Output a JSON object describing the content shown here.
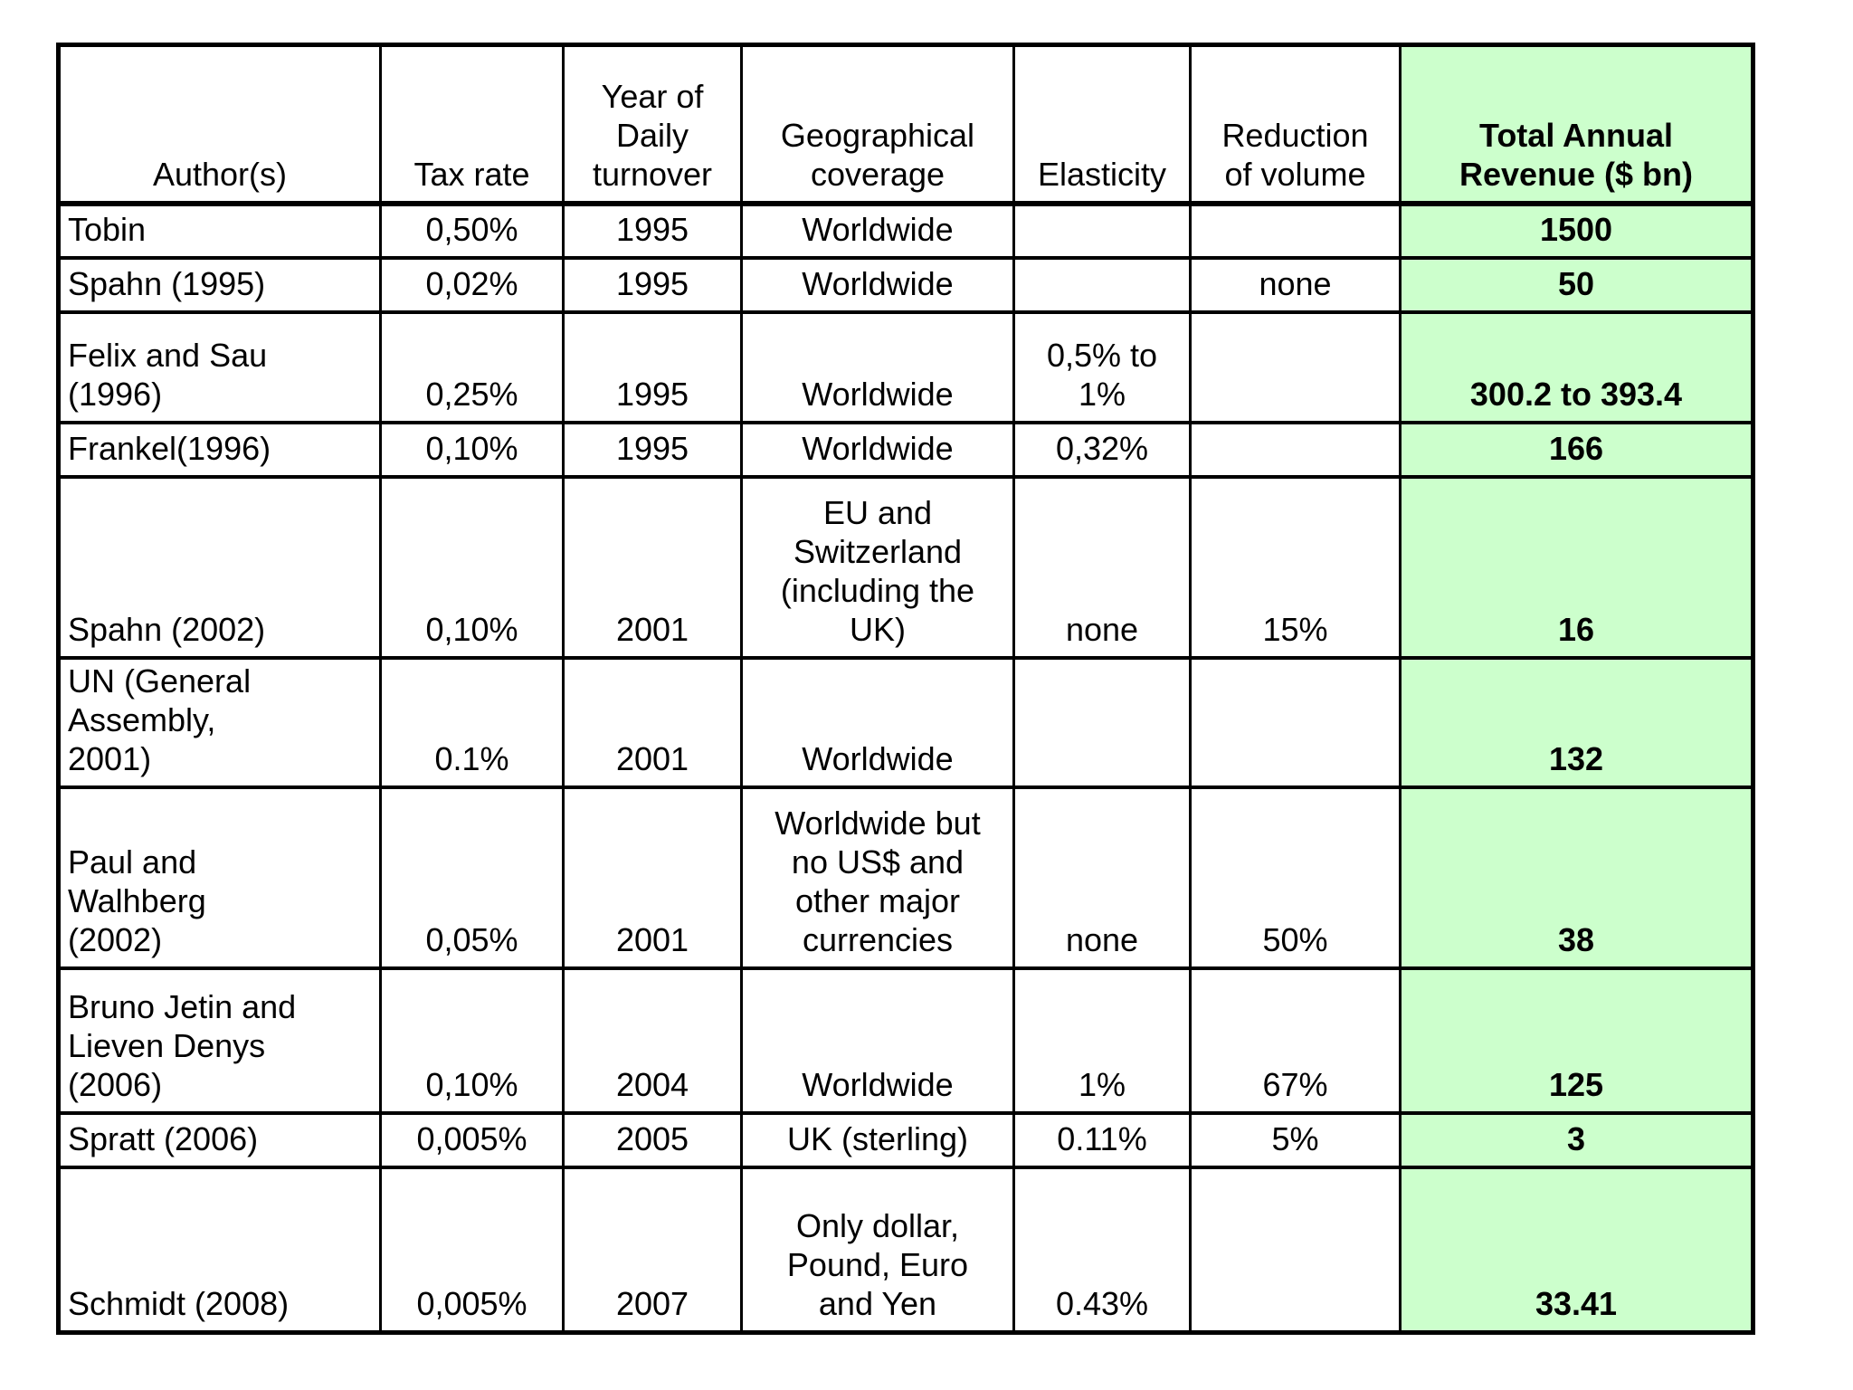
{
  "table": {
    "columns": [
      {
        "key": "author",
        "label": "Author(s)"
      },
      {
        "key": "tax_rate",
        "label": "Tax rate"
      },
      {
        "key": "year",
        "label": "Year of\nDaily\nturnover"
      },
      {
        "key": "geo",
        "label": "Geographical\ncoverage"
      },
      {
        "key": "elasticity",
        "label": "Elasticity"
      },
      {
        "key": "reduction",
        "label": "Reduction\nof volume"
      },
      {
        "key": "revenue",
        "label": "Total Annual\nRevenue ($ bn)"
      }
    ],
    "rows": [
      {
        "author": "Tobin",
        "tax_rate": "0,50%",
        "year": "1995",
        "geo": "Worldwide",
        "elasticity": "",
        "reduction": "",
        "revenue": "1500"
      },
      {
        "author": "Spahn (1995)",
        "tax_rate": "0,02%",
        "year": "1995",
        "geo": "Worldwide",
        "elasticity": "",
        "reduction": "none",
        "revenue": "50"
      },
      {
        "author": "Felix and Sau\n(1996)",
        "tax_rate": "0,25%",
        "year": "1995",
        "geo": "Worldwide",
        "elasticity": "0,5% to\n1%",
        "reduction": "",
        "revenue": "300.2 to 393.4"
      },
      {
        "author": "Frankel(1996)",
        "tax_rate": "0,10%",
        "year": "1995",
        "geo": "Worldwide",
        "elasticity": "0,32%",
        "reduction": "",
        "revenue": "166"
      },
      {
        "author": "Spahn (2002)",
        "tax_rate": "0,10%",
        "year": "2001",
        "geo": "EU and\nSwitzerland\n(including the\nUK)",
        "elasticity": "none",
        "reduction": "15%",
        "revenue": "16"
      },
      {
        "author": "UN (General\nAssembly,\n2001)",
        "tax_rate": "0.1%",
        "year": "2001",
        "geo": "Worldwide",
        "elasticity": "",
        "reduction": "",
        "revenue": "132"
      },
      {
        "author": "Paul and\nWalhberg\n(2002)",
        "tax_rate": "0,05%",
        "year": "2001",
        "geo": "Worldwide but\nno US$ and\nother major\ncurrencies",
        "elasticity": "none",
        "reduction": "50%",
        "revenue": "38"
      },
      {
        "author": "Bruno Jetin and\nLieven Denys\n(2006)",
        "tax_rate": "0,10%",
        "year": "2004",
        "geo": "Worldwide",
        "elasticity": "1%",
        "reduction": "67%",
        "revenue": "125"
      },
      {
        "author": "Spratt (2006)",
        "tax_rate": "0,005%",
        "year": "2005",
        "geo": "UK (sterling)",
        "elasticity": "0.11%",
        "reduction": "5%",
        "revenue": "3"
      },
      {
        "author": "Schmidt (2008)",
        "tax_rate": "0,005%",
        "year": "2007",
        "geo": "Only dollar,\nPound, Euro\nand Yen",
        "elasticity": "0.43%",
        "reduction": "",
        "revenue": "33.41"
      }
    ]
  },
  "colors": {
    "revenue_column_bg": "#ccffcc",
    "grid_border": "#000000",
    "page_bg": "#ffffff",
    "text": "#000000"
  }
}
